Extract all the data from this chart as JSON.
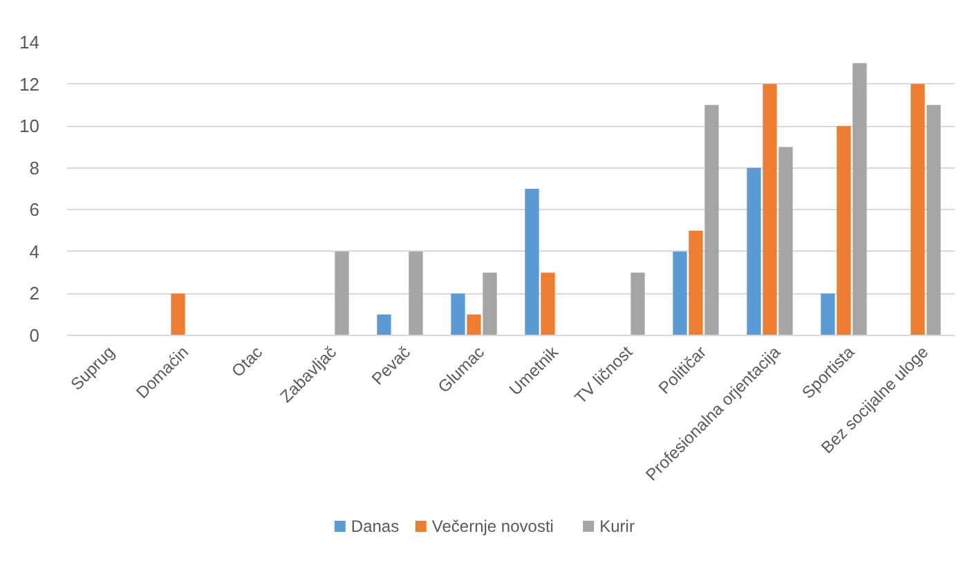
{
  "chart_data": {
    "type": "bar",
    "categories": [
      "Suprug",
      "Domaćin",
      "Otac",
      "Zabavljač",
      "Pevač",
      "Glumac",
      "Umetnik",
      "TV ličnost",
      "Političar",
      "Profesionalna orjentacija",
      "Sportista",
      "Bez socijalne uloge"
    ],
    "series": [
      {
        "name": "Danas",
        "color": "#5b9bd5",
        "values": [
          null,
          null,
          null,
          null,
          1,
          2,
          7,
          null,
          4,
          8,
          2,
          null
        ]
      },
      {
        "name": "Večernje novosti",
        "color": "#ed7d31",
        "values": [
          null,
          2,
          null,
          null,
          null,
          1,
          3,
          null,
          5,
          12,
          10,
          12
        ]
      },
      {
        "name": "Kurir",
        "color": "#a5a5a5",
        "values": [
          null,
          null,
          null,
          4,
          4,
          3,
          null,
          3,
          11,
          9,
          13,
          11
        ]
      }
    ],
    "ylim": [
      0,
      14
    ],
    "yticks": [
      0,
      2,
      4,
      6,
      8,
      10,
      12,
      14
    ],
    "grid": "y",
    "legend": "bottom"
  }
}
